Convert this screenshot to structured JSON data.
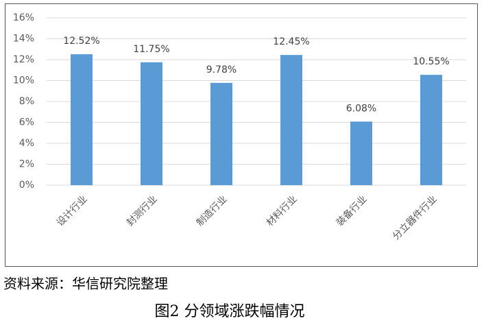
{
  "chart_data": {
    "type": "bar",
    "categories": [
      "设计行业",
      "封测行业",
      "制造行业",
      "材料行业",
      "装备行业",
      "分立器件行业"
    ],
    "values": [
      12.52,
      11.75,
      9.78,
      12.45,
      6.08,
      10.55
    ],
    "value_labels": [
      "12.52%",
      "11.75%",
      "9.78%",
      "12.45%",
      "6.08%",
      "10.55%"
    ],
    "color": "#5b9bd5",
    "ylim": [
      0,
      16
    ],
    "yticks": [
      {
        "value": 0,
        "label": "0%"
      },
      {
        "value": 2,
        "label": "2%"
      },
      {
        "value": 4,
        "label": "4%"
      },
      {
        "value": 6,
        "label": "6%"
      },
      {
        "value": 8,
        "label": "8%"
      },
      {
        "value": 10,
        "label": "10%"
      },
      {
        "value": 12,
        "label": "12%"
      },
      {
        "value": 14,
        "label": "14%"
      },
      {
        "value": 16,
        "label": "16%"
      }
    ],
    "grid": true,
    "source": "资料来源：华信研究院整理",
    "caption": "图2 分领域涨跌幅情况"
  }
}
